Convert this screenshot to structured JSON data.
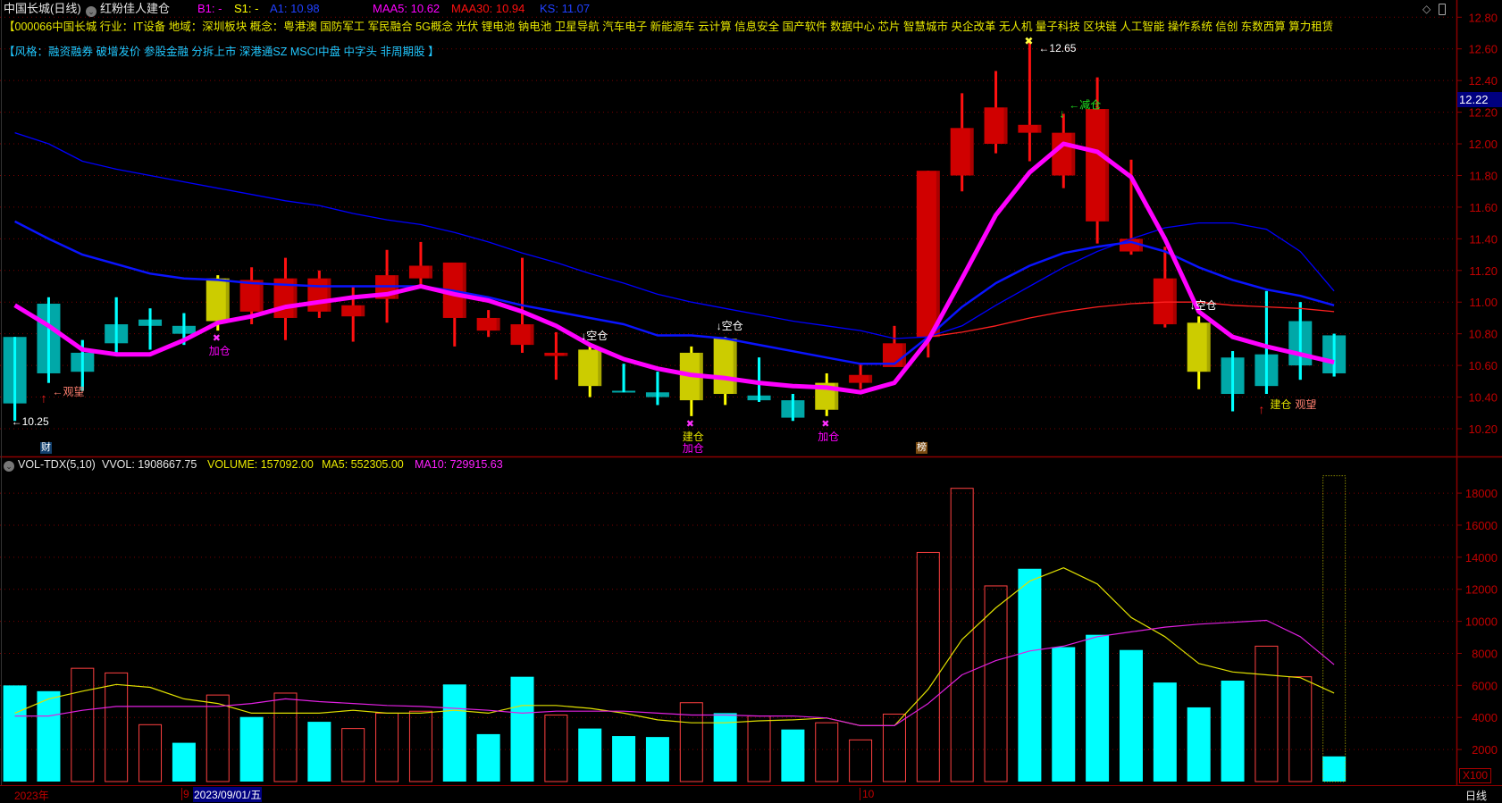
{
  "header": {
    "title": "中国长城(日线)",
    "indicator_name": "红粉佳人建仓",
    "b1": "B1: -",
    "s1": "S1: -",
    "a1": "A1: 10.98",
    "maa5": "MAA5: 10.62",
    "maa30": "MAA30: 10.94",
    "ks": "KS: 11.07"
  },
  "info": {
    "line1": "【000066中国长城 行业：IT设备 地域：深圳板块 概念：粤港澳 国防军工 军民融合 5G概念 光伏 锂电池 钠电池 卫星导航 汽车电子 新能源车 云计算 信息安全 国产软件 数据中心 芯片 智慧城市 央企改革 无人机 量子科技 区块链 人工智能 操作系统 信创 东数西算 算力租赁",
    "line2": "【风格：融资融券 破增发价 参股金融 分拆上市 深港通SZ MSCI中盘 中字头 非周期股 】"
  },
  "top_right_icons": [
    "diamond-icon",
    "window-icon"
  ],
  "price_axis": {
    "labels": [
      "12.80",
      "12.60",
      "12.40",
      "12.20",
      "12.00",
      "11.80",
      "11.60",
      "11.40",
      "11.20",
      "11.00",
      "10.80",
      "10.60",
      "10.40",
      "10.20"
    ],
    "current_price": "12.22"
  },
  "markers": {
    "finance": "财",
    "rank": "榜"
  },
  "volume_header": {
    "name": "VOL-TDX(5,10)",
    "vvol": "VVOL: 1908667.75",
    "volume": "VOLUME: 157092.00",
    "ma5": "MA5: 552305.00",
    "ma10": "MA10: 729915.63"
  },
  "volume_axis": {
    "labels": [
      "18000",
      "16000",
      "14000",
      "12000",
      "10000",
      "8000",
      "6000",
      "4000",
      "2000"
    ],
    "unit": "X100"
  },
  "date_bar": {
    "year": "2023年",
    "month_sep": "9",
    "selected_date": "2023/09/01/五",
    "month_oct": "10",
    "period": "日线"
  },
  "colors": {
    "up": "#d00000",
    "down_body": "#00a8a8",
    "down_wick": "#00ffff",
    "signal": "#cccc00",
    "maa5": "#ff00ff",
    "maa30": "#ff2020",
    "ks": "#0000ff",
    "ma_thick": "#0a14ff",
    "vol_down": "#00ffff",
    "vol_up": "#ff4040",
    "vol_ma5": "#e0e000",
    "vol_ma10": "#e020e0",
    "grid": "#7a0000",
    "axis": "#8b0000"
  },
  "chart_data": {
    "type": "candlestick",
    "ylim": [
      10.2,
      12.8
    ],
    "candles": [
      [
        10.78,
        10.78,
        10.25,
        10.36,
        "down"
      ],
      [
        10.99,
        11.03,
        10.49,
        10.55,
        "down"
      ],
      [
        10.68,
        10.76,
        10.44,
        10.56,
        "down"
      ],
      [
        10.86,
        11.03,
        10.67,
        10.74,
        "down"
      ],
      [
        10.89,
        10.96,
        10.7,
        10.85,
        "down"
      ],
      [
        10.85,
        10.93,
        10.73,
        10.8,
        "down"
      ],
      [
        10.88,
        11.17,
        10.82,
        11.15,
        "signal"
      ],
      [
        10.94,
        11.22,
        10.86,
        11.14,
        "up"
      ],
      [
        10.9,
        11.28,
        10.76,
        11.15,
        "up"
      ],
      [
        10.94,
        11.2,
        10.9,
        11.15,
        "up"
      ],
      [
        10.91,
        11.1,
        10.75,
        10.98,
        "up"
      ],
      [
        11.02,
        11.33,
        10.87,
        11.17,
        "up"
      ],
      [
        11.15,
        11.38,
        11.09,
        11.23,
        "up"
      ],
      [
        10.9,
        11.25,
        10.72,
        11.25,
        "up"
      ],
      [
        10.82,
        10.95,
        10.78,
        10.9,
        "up"
      ],
      [
        10.73,
        11.28,
        10.68,
        10.86,
        "up"
      ],
      [
        10.66,
        10.81,
        10.51,
        10.68,
        "up"
      ],
      [
        10.7,
        10.72,
        10.4,
        10.47,
        "signal"
      ],
      [
        10.44,
        10.61,
        10.43,
        10.44,
        "down"
      ],
      [
        10.43,
        10.56,
        10.35,
        10.4,
        "down"
      ],
      [
        10.38,
        10.72,
        10.28,
        10.68,
        "signal"
      ],
      [
        10.42,
        10.78,
        10.35,
        10.77,
        "signal"
      ],
      [
        10.41,
        10.65,
        10.37,
        10.38,
        "down"
      ],
      [
        10.38,
        10.42,
        10.25,
        10.27,
        "down"
      ],
      [
        10.32,
        10.55,
        10.28,
        10.49,
        "signal"
      ],
      [
        10.49,
        10.61,
        10.45,
        10.54,
        "up"
      ],
      [
        10.59,
        10.85,
        10.59,
        10.74,
        "up"
      ],
      [
        10.78,
        11.83,
        10.65,
        11.83,
        "up"
      ],
      [
        11.8,
        12.32,
        11.7,
        12.1,
        "up"
      ],
      [
        12.0,
        12.46,
        11.94,
        12.23,
        "up"
      ],
      [
        12.07,
        12.65,
        11.89,
        12.12,
        "up"
      ],
      [
        11.8,
        12.19,
        11.72,
        12.07,
        "up"
      ],
      [
        11.51,
        12.42,
        11.37,
        12.22,
        "up"
      ],
      [
        11.32,
        11.9,
        11.3,
        11.4,
        "up"
      ],
      [
        10.86,
        11.35,
        10.84,
        11.15,
        "up"
      ],
      [
        10.56,
        10.91,
        10.45,
        10.87,
        "signal"
      ],
      [
        10.65,
        10.69,
        10.31,
        10.42,
        "down"
      ],
      [
        10.67,
        11.07,
        10.42,
        10.47,
        "down"
      ],
      [
        10.88,
        11.0,
        10.51,
        10.6,
        "down"
      ],
      [
        10.79,
        10.8,
        10.53,
        10.55,
        "down"
      ]
    ],
    "lines": {
      "maa5": [
        10.98,
        10.85,
        10.7,
        10.67,
        10.67,
        10.76,
        10.87,
        10.91,
        10.97,
        11.0,
        11.03,
        11.05,
        11.1,
        11.05,
        11.01,
        10.94,
        10.85,
        10.73,
        10.64,
        10.58,
        10.54,
        10.52,
        10.49,
        10.47,
        10.46,
        10.43,
        10.49,
        10.76,
        11.15,
        11.55,
        11.82,
        12.0,
        11.95,
        11.79,
        11.4,
        10.94,
        10.78,
        10.72,
        10.67,
        10.62
      ],
      "thick_blue": [
        11.51,
        11.4,
        11.3,
        11.24,
        11.18,
        11.15,
        11.14,
        11.12,
        11.11,
        11.1,
        11.1,
        11.1,
        11.1,
        11.07,
        11.03,
        10.98,
        10.94,
        10.9,
        10.86,
        10.79,
        10.79,
        10.77,
        10.73,
        10.69,
        10.65,
        10.61,
        10.61,
        10.78,
        10.97,
        11.12,
        11.23,
        11.31,
        11.35,
        11.38,
        11.32,
        11.22,
        11.14,
        11.08,
        11.04,
        10.98
      ],
      "ks": [
        12.07,
        12.0,
        11.89,
        11.84,
        11.8,
        11.76,
        11.72,
        11.68,
        11.64,
        11.61,
        11.56,
        11.52,
        11.49,
        11.44,
        11.38,
        11.31,
        11.25,
        11.18,
        11.12,
        11.05,
        11.0,
        10.96,
        10.92,
        10.88,
        10.85,
        10.82,
        10.77,
        10.78,
        10.85,
        10.98,
        11.1,
        11.22,
        11.32,
        11.4,
        11.47,
        11.5,
        11.5,
        11.46,
        11.32,
        11.07
      ],
      "maa30_start": 27,
      "maa30": [
        10.78,
        10.81,
        10.85,
        10.9,
        10.94,
        10.97,
        10.99,
        11.0,
        11.0,
        10.98,
        10.97,
        10.96,
        10.94
      ]
    },
    "annotations": [
      {
        "i": 0,
        "anchor": "low",
        "text": "←10.25",
        "color": "#ffffff",
        "marker": "none"
      },
      {
        "i": 1,
        "anchor": "low",
        "text": "←观望",
        "color": "#ff8070",
        "marker": "arrow-up"
      },
      {
        "i": 6,
        "anchor": "low",
        "text": "加仓",
        "color": "#ff00ff",
        "marker": "cross"
      },
      {
        "i": 17,
        "anchor": "high",
        "text": "↓空仓",
        "color": "#ffffff",
        "marker": "none"
      },
      {
        "i": 20,
        "anchor": "low",
        "text": "建仓",
        "color": "#e0e000",
        "marker": "cross"
      },
      {
        "i": 20,
        "anchor": "low2",
        "text": "加仓",
        "color": "#ff00ff",
        "marker": "none"
      },
      {
        "i": 21,
        "anchor": "high",
        "text": "↓空仓",
        "color": "#ffffff",
        "marker": "none"
      },
      {
        "i": 24,
        "anchor": "low",
        "text": "加仓",
        "color": "#ff00ff",
        "marker": "cross"
      },
      {
        "i": 30,
        "anchor": "high",
        "text": "←12.65",
        "color": "#ffffff",
        "marker": "star"
      },
      {
        "i": 31,
        "anchor": "high",
        "text": "←减仓",
        "color": "#20e020",
        "marker": "arrow-down"
      },
      {
        "i": 35,
        "anchor": "high",
        "text": "↓空仓",
        "color": "#ffffff",
        "marker": "none"
      },
      {
        "i": 37,
        "anchor": "low",
        "text": "建仓",
        "color": "#e0e000",
        "marker": "arrow-up"
      },
      {
        "i": 37,
        "anchor": "low",
        "text": "观望",
        "color": "#ff8070",
        "marker": "none"
      }
    ],
    "volume": {
      "unit": "x100",
      "ylim": [
        0,
        19000
      ],
      "values": [
        6000,
        5640,
        7070,
        6780,
        3550,
        2420,
        5400,
        4030,
        5520,
        3730,
        3310,
        4270,
        4390,
        6060,
        2960,
        6540,
        4150,
        3310,
        2840,
        2780,
        4920,
        4270,
        4090,
        3250,
        3670,
        2600,
        4210,
        14300,
        18300,
        12210,
        13280,
        8390,
        9160,
        8210,
        6180,
        4630,
        6300,
        8450,
        6540,
        1571
      ],
      "kinds": [
        "down",
        "down",
        "up",
        "up",
        "up",
        "down",
        "up",
        "down",
        "up",
        "down",
        "up",
        "up",
        "up",
        "down",
        "down",
        "down",
        "up",
        "down",
        "down",
        "down",
        "up",
        "down",
        "up",
        "down",
        "up",
        "up",
        "up",
        "up",
        "up",
        "up",
        "down",
        "down",
        "down",
        "down",
        "down",
        "down",
        "down",
        "up",
        "up",
        "down"
      ],
      "projected_last": 19087,
      "ma5": [
        4270,
        5160,
        5640,
        6060,
        5880,
        5160,
        4870,
        4270,
        4270,
        4270,
        4450,
        4270,
        4270,
        4450,
        4270,
        4750,
        4750,
        4570,
        4270,
        3850,
        3670,
        3670,
        3790,
        3850,
        3970,
        3490,
        3490,
        5760,
        8870,
        10840,
        12510,
        13340,
        12330,
        10240,
        9040,
        7370,
        6840,
        6660,
        6480,
        5523
      ],
      "ma10": [
        4090,
        4090,
        4450,
        4690,
        4690,
        4690,
        4690,
        4870,
        5160,
        4990,
        4870,
        4750,
        4690,
        4570,
        4450,
        4270,
        4390,
        4390,
        4390,
        4270,
        4150,
        4150,
        4090,
        4090,
        3970,
        3490,
        3490,
        4870,
        6660,
        7550,
        8150,
        8450,
        9040,
        9340,
        9640,
        9820,
        9940,
        10060,
        9040,
        7299
      ]
    }
  }
}
